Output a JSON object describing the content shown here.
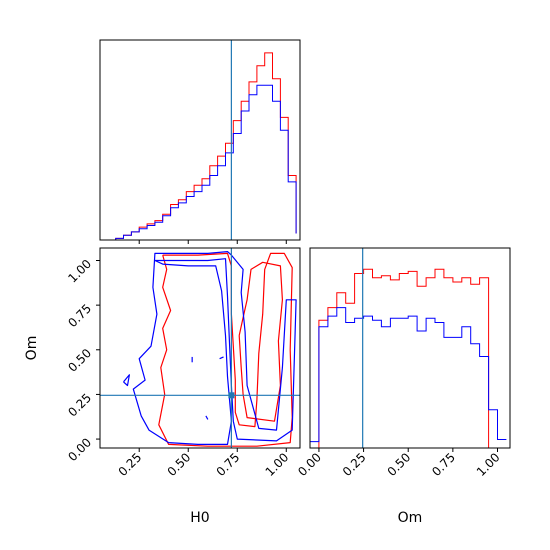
{
  "chart_data": [
    {
      "type": "histogram",
      "panel": "H0 marginal",
      "xlim": [
        0.05,
        1.07
      ],
      "truth": 0.72,
      "bins": [
        0.05,
        0.09,
        0.13,
        0.17,
        0.21,
        0.25,
        0.29,
        0.33,
        0.37,
        0.41,
        0.45,
        0.49,
        0.53,
        0.57,
        0.61,
        0.65,
        0.69,
        0.73,
        0.77,
        0.81,
        0.85,
        0.89,
        0.93,
        0.97,
        1.01,
        1.05
      ],
      "series": [
        {
          "color": "#ff0000",
          "counts": [
            0,
            0,
            0.5,
            1.5,
            2.5,
            4,
            5,
            6,
            8,
            11,
            12.5,
            15,
            17,
            19,
            23,
            26,
            30,
            37,
            43,
            49,
            54,
            58,
            50,
            38,
            20,
            2
          ]
        },
        {
          "color": "#0000ff",
          "counts": [
            0,
            0,
            0.5,
            1.5,
            2.5,
            3.5,
            4.5,
            5.5,
            7.5,
            10,
            11.5,
            13.5,
            15,
            17,
            20,
            23,
            27,
            33,
            40,
            45,
            48,
            48,
            43,
            34,
            18,
            2
          ]
        }
      ]
    },
    {
      "type": "contour",
      "panel": "H0 vs Om",
      "xlabel": "H0",
      "ylabel": "Om",
      "xlim": [
        0.05,
        1.07
      ],
      "ylim": [
        -0.05,
        1.07
      ],
      "xticks": [
        "0.25",
        "0.50",
        "0.75",
        "1.00"
      ],
      "yticks": [
        "0.00",
        "0.25",
        "0.50",
        "0.75",
        "1.00"
      ],
      "truth": [
        0.72,
        0.245
      ],
      "contours": [
        {
          "color": "#ff0000",
          "points": [
            [
              0.37,
              1.03
            ],
            [
              0.55,
              1.03
            ],
            [
              0.7,
              1.04
            ],
            [
              0.72,
              0.97
            ],
            [
              0.72,
              0.7
            ],
            [
              0.73,
              0.52
            ],
            [
              0.74,
              0.33
            ],
            [
              0.74,
              0.15
            ],
            [
              0.76,
              0.08
            ],
            [
              0.84,
              0.07
            ],
            [
              0.85,
              0.22
            ],
            [
              0.86,
              0.48
            ],
            [
              0.88,
              0.7
            ],
            [
              0.89,
              0.95
            ],
            [
              0.92,
              1.04
            ],
            [
              0.99,
              1.04
            ],
            [
              1.03,
              0.96
            ],
            [
              1.02,
              0.5
            ],
            [
              1.03,
              0.12
            ],
            [
              1.02,
              -0.02
            ],
            [
              0.85,
              -0.04
            ],
            [
              0.6,
              -0.04
            ],
            [
              0.4,
              -0.03
            ],
            [
              0.35,
              0.08
            ],
            [
              0.38,
              0.25
            ],
            [
              0.36,
              0.4
            ],
            [
              0.39,
              0.5
            ],
            [
              0.37,
              0.62
            ],
            [
              0.41,
              0.72
            ],
            [
              0.37,
              0.85
            ],
            [
              0.39,
              0.95
            ],
            [
              0.37,
              1.03
            ]
          ]
        },
        {
          "color": "#ff0000",
          "points": [
            [
              0.76,
              0.58
            ],
            [
              0.77,
              0.4
            ],
            [
              0.78,
              0.25
            ],
            [
              0.8,
              0.12
            ],
            [
              0.94,
              0.1
            ],
            [
              0.97,
              0.3
            ],
            [
              0.96,
              0.55
            ],
            [
              0.98,
              0.78
            ],
            [
              0.97,
              0.97
            ],
            [
              0.88,
              0.99
            ],
            [
              0.82,
              0.95
            ],
            [
              0.8,
              0.78
            ],
            [
              0.78,
              0.68
            ],
            [
              0.76,
              0.58
            ]
          ]
        },
        {
          "color": "#0000ff",
          "points": [
            [
              0.33,
              1.0
            ],
            [
              0.6,
              1.0
            ],
            [
              0.69,
              1.01
            ],
            [
              0.7,
              0.8
            ],
            [
              0.71,
              0.55
            ],
            [
              0.72,
              0.3
            ],
            [
              0.73,
              0.1
            ],
            [
              0.75,
              0.0
            ],
            [
              0.95,
              -0.01
            ],
            [
              1.03,
              0.05
            ],
            [
              1.05,
              0.78
            ],
            [
              1.0,
              0.78
            ],
            [
              0.98,
              0.4
            ],
            [
              0.95,
              0.05
            ],
            [
              0.86,
              0.06
            ],
            [
              0.8,
              0.3
            ],
            [
              0.79,
              0.6
            ],
            [
              0.77,
              0.82
            ],
            [
              0.78,
              0.95
            ],
            [
              0.72,
              1.03
            ],
            [
              0.7,
              1.05
            ],
            [
              0.6,
              1.04
            ],
            [
              0.45,
              1.04
            ],
            [
              0.33,
              1.04
            ],
            [
              0.32,
              0.85
            ],
            [
              0.34,
              0.7
            ],
            [
              0.31,
              0.52
            ],
            [
              0.25,
              0.45
            ],
            [
              0.28,
              0.33
            ],
            [
              0.22,
              0.28
            ],
            [
              0.26,
              0.13
            ],
            [
              0.3,
              0.05
            ],
            [
              0.4,
              -0.02
            ],
            [
              0.55,
              -0.03
            ],
            [
              0.7,
              -0.03
            ],
            [
              0.72,
              0.1
            ],
            [
              0.7,
              0.35
            ],
            [
              0.69,
              0.58
            ],
            [
              0.67,
              0.83
            ],
            [
              0.64,
              0.97
            ],
            [
              0.5,
              0.97
            ],
            [
              0.37,
              0.98
            ],
            [
              0.33,
              1.0
            ]
          ]
        },
        {
          "color": "#0000ff",
          "points": [
            [
              0.17,
              0.32
            ],
            [
              0.2,
              0.36
            ],
            [
              0.19,
              0.3
            ],
            [
              0.17,
              0.32
            ]
          ]
        }
      ]
    },
    {
      "type": "histogram",
      "panel": "Om marginal",
      "xlabel": "Om",
      "xlim": [
        -0.05,
        1.07
      ],
      "xticks": [
        "0.00",
        "0.25",
        "0.50",
        "0.75",
        "1.00"
      ],
      "truth": 0.245,
      "bins": [
        -0.05,
        0.0,
        0.05,
        0.1,
        0.15,
        0.2,
        0.25,
        0.3,
        0.35,
        0.4,
        0.45,
        0.5,
        0.55,
        0.6,
        0.65,
        0.7,
        0.75,
        0.8,
        0.85,
        0.9,
        0.95,
        1.0,
        1.05
      ],
      "series": [
        {
          "color": "#ff0000",
          "counts": [
            0,
            60,
            66,
            73,
            68,
            82,
            84,
            80,
            81,
            79,
            82,
            83,
            76,
            80,
            84,
            80,
            78,
            80,
            77,
            80,
            0,
            0
          ]
        },
        {
          "color": "#0000ff",
          "counts": [
            3,
            57,
            62,
            66,
            59,
            61,
            62,
            60,
            57,
            61,
            61,
            62,
            55,
            61,
            59,
            52,
            52,
            57,
            49,
            43,
            18,
            4
          ]
        }
      ]
    }
  ]
}
